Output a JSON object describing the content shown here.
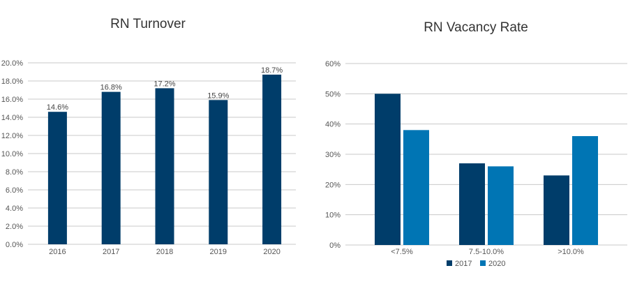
{
  "chart_data": [
    {
      "type": "bar",
      "title": "RN Turnover",
      "categories": [
        "2016",
        "2017",
        "2018",
        "2019",
        "2020"
      ],
      "values": [
        14.6,
        16.8,
        17.2,
        15.9,
        18.7
      ],
      "data_labels": [
        "14.6%",
        "16.8%",
        "17.2%",
        "15.9%",
        "18.7%"
      ],
      "ylim": [
        0,
        20
      ],
      "yticks": [
        "0.0%",
        "2.0%",
        "4.0%",
        "6.0%",
        "8.0%",
        "10.0%",
        "12.0%",
        "14.0%",
        "16.0%",
        "18.0%",
        "20.0%"
      ],
      "grid": true,
      "color": "#003d6a"
    },
    {
      "type": "bar",
      "title": "RN Vacancy Rate",
      "categories": [
        "<7.5%",
        "7.5-10.0%",
        ">10.0%"
      ],
      "series": [
        {
          "name": "2017",
          "values": [
            50,
            27,
            23
          ],
          "color": "#003d6a"
        },
        {
          "name": "2020",
          "values": [
            38,
            26,
            36
          ],
          "color": "#0075b4"
        }
      ],
      "ylim": [
        0,
        60
      ],
      "yticks": [
        "0%",
        "10%",
        "20%",
        "30%",
        "40%",
        "50%",
        "60%"
      ],
      "grid": true,
      "legend": "bottom"
    }
  ]
}
